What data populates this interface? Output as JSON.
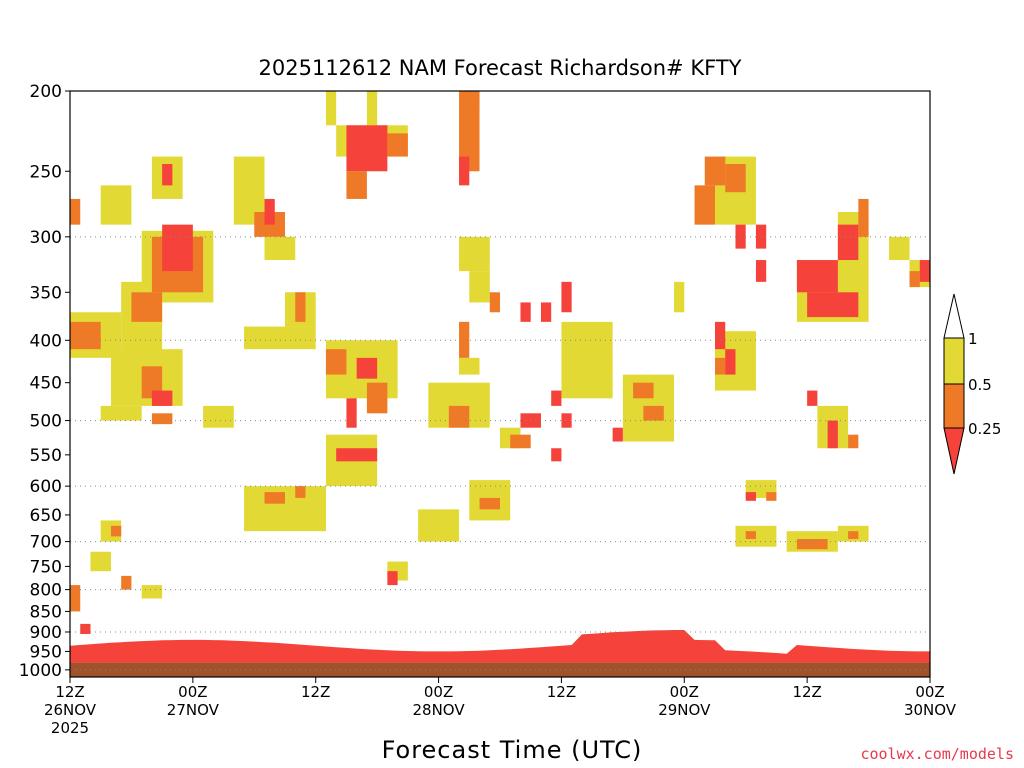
{
  "chart_data": {
    "type": "heatmap",
    "title": "2025112612 NAM Forecast Richardson# KFTY",
    "xlabel": "Forecast Time (UTC)",
    "ylabel": "",
    "y_scale": "log-pressure (inverted)",
    "ylim": [
      1000,
      200
    ],
    "yticks": [
      200,
      250,
      300,
      350,
      400,
      450,
      500,
      550,
      600,
      650,
      700,
      750,
      800,
      850,
      900,
      950,
      1000
    ],
    "xlim_hours": [
      0,
      84
    ],
    "xticks": [
      {
        "h": 0,
        "l1": "12Z",
        "l2": "26NOV",
        "l3": "2025"
      },
      {
        "h": 12,
        "l1": "00Z",
        "l2": "27NOV",
        "l3": ""
      },
      {
        "h": 24,
        "l1": "12Z",
        "l2": "",
        "l3": ""
      },
      {
        "h": 36,
        "l1": "00Z",
        "l2": "28NOV",
        "l3": ""
      },
      {
        "h": 48,
        "l1": "12Z",
        "l2": "",
        "l3": ""
      },
      {
        "h": 60,
        "l1": "00Z",
        "l2": "29NOV",
        "l3": ""
      },
      {
        "h": 72,
        "l1": "12Z",
        "l2": "",
        "l3": ""
      },
      {
        "h": 84,
        "l1": "00Z",
        "l2": "30NOV",
        "l3": ""
      }
    ],
    "grid_dotted_levels": [
      300,
      400,
      500,
      600,
      700,
      800,
      900,
      1000
    ],
    "legend": {
      "placement": "right",
      "labels": [
        "1",
        "0.5",
        "0.25"
      ],
      "bins": [
        {
          "range": [
            0.5,
            1
          ],
          "color": "#e3d934"
        },
        {
          "range": [
            0.25,
            0.5
          ],
          "color": "#ee7a28"
        },
        {
          "range": [
            0,
            0.25
          ],
          "color": "#f5423a"
        }
      ]
    },
    "colors": {
      "low": "#f5423a",
      "mid": "#ee7a28",
      "high": "#e3d934",
      "ground": "#a0522d"
    },
    "cell_hours": 1,
    "surface_pressure": 980,
    "cells": [
      {
        "h0": 9,
        "h1": 12,
        "p0": 290,
        "p1": 330,
        "c": "low"
      },
      {
        "h0": 8,
        "h1": 13,
        "p0": 300,
        "p1": 350,
        "c": "mid"
      },
      {
        "h0": 7,
        "h1": 14,
        "p0": 295,
        "p1": 360,
        "c": "high"
      },
      {
        "h0": 6,
        "h1": 9,
        "p0": 350,
        "p1": 380,
        "c": "mid"
      },
      {
        "h0": 5,
        "h1": 9,
        "p0": 340,
        "p1": 420,
        "c": "high"
      },
      {
        "h0": 0,
        "h1": 3,
        "p0": 380,
        "p1": 410,
        "c": "mid"
      },
      {
        "h0": 0,
        "h1": 5,
        "p0": 370,
        "p1": 420,
        "c": "high"
      },
      {
        "h0": 4,
        "h1": 11,
        "p0": 410,
        "p1": 480,
        "c": "high"
      },
      {
        "h0": 7,
        "h1": 9,
        "p0": 430,
        "p1": 470,
        "c": "mid"
      },
      {
        "h0": 8,
        "h1": 10,
        "p0": 460,
        "p1": 480,
        "c": "low"
      },
      {
        "h0": 3,
        "h1": 7,
        "p0": 480,
        "p1": 500,
        "c": "high"
      },
      {
        "h0": 8,
        "h1": 10,
        "p0": 490,
        "p1": 505,
        "c": "mid"
      },
      {
        "h0": 13,
        "h1": 16,
        "p0": 480,
        "p1": 510,
        "c": "high"
      },
      {
        "h0": 9,
        "h1": 10,
        "p0": 245,
        "p1": 260,
        "c": "low"
      },
      {
        "h0": 8,
        "h1": 11,
        "p0": 240,
        "p1": 270,
        "c": "high"
      },
      {
        "h0": 3,
        "h1": 6,
        "p0": 260,
        "p1": 290,
        "c": "high"
      },
      {
        "h0": 0,
        "h1": 1,
        "p0": 270,
        "p1": 290,
        "c": "mid"
      },
      {
        "h0": 16,
        "h1": 19,
        "p0": 240,
        "p1": 290,
        "c": "high"
      },
      {
        "h0": 19,
        "h1": 20,
        "p0": 270,
        "p1": 290,
        "c": "low"
      },
      {
        "h0": 18,
        "h1": 21,
        "p0": 280,
        "p1": 300,
        "c": "mid"
      },
      {
        "h0": 19,
        "h1": 22,
        "p0": 300,
        "p1": 320,
        "c": "high"
      },
      {
        "h0": 21,
        "h1": 24,
        "p0": 350,
        "p1": 385,
        "c": "high"
      },
      {
        "h0": 22,
        "h1": 23,
        "p0": 350,
        "p1": 380,
        "c": "mid"
      },
      {
        "h0": 17,
        "h1": 24,
        "p0": 385,
        "p1": 410,
        "c": "high"
      },
      {
        "h0": 26,
        "h1": 33,
        "p0": 220,
        "p1": 240,
        "c": "high"
      },
      {
        "h0": 27,
        "h1": 31,
        "p0": 220,
        "p1": 250,
        "c": "low"
      },
      {
        "h0": 31,
        "h1": 33,
        "p0": 225,
        "p1": 240,
        "c": "mid"
      },
      {
        "h0": 27,
        "h1": 29,
        "p0": 250,
        "p1": 270,
        "c": "mid"
      },
      {
        "h0": 25,
        "h1": 26,
        "p0": 200,
        "p1": 220,
        "c": "high"
      },
      {
        "h0": 29,
        "h1": 30,
        "p0": 200,
        "p1": 220,
        "c": "high"
      },
      {
        "h0": 25,
        "h1": 32,
        "p0": 400,
        "p1": 470,
        "c": "high"
      },
      {
        "h0": 25,
        "h1": 27,
        "p0": 410,
        "p1": 440,
        "c": "mid"
      },
      {
        "h0": 28,
        "h1": 30,
        "p0": 420,
        "p1": 445,
        "c": "low"
      },
      {
        "h0": 29,
        "h1": 31,
        "p0": 450,
        "p1": 490,
        "c": "mid"
      },
      {
        "h0": 27,
        "h1": 28,
        "p0": 470,
        "p1": 510,
        "c": "low"
      },
      {
        "h0": 26,
        "h1": 30,
        "p0": 540,
        "p1": 560,
        "c": "low"
      },
      {
        "h0": 25,
        "h1": 30,
        "p0": 520,
        "p1": 600,
        "c": "high"
      },
      {
        "h0": 38,
        "h1": 40,
        "p0": 200,
        "p1": 250,
        "c": "mid"
      },
      {
        "h0": 38,
        "h1": 39,
        "p0": 240,
        "p1": 260,
        "c": "low"
      },
      {
        "h0": 39,
        "h1": 40,
        "p0": 200,
        "p1": 210,
        "c": "mid"
      },
      {
        "h0": 38,
        "h1": 41,
        "p0": 300,
        "p1": 330,
        "c": "high"
      },
      {
        "h0": 39,
        "h1": 41,
        "p0": 330,
        "p1": 360,
        "c": "high"
      },
      {
        "h0": 41,
        "h1": 42,
        "p0": 350,
        "p1": 370,
        "c": "mid"
      },
      {
        "h0": 38,
        "h1": 39,
        "p0": 380,
        "p1": 420,
        "c": "mid"
      },
      {
        "h0": 38,
        "h1": 40,
        "p0": 420,
        "p1": 440,
        "c": "high"
      },
      {
        "h0": 35,
        "h1": 41,
        "p0": 450,
        "p1": 510,
        "c": "high"
      },
      {
        "h0": 37,
        "h1": 39,
        "p0": 480,
        "p1": 510,
        "c": "mid"
      },
      {
        "h0": 42,
        "h1": 44,
        "p0": 510,
        "p1": 540,
        "c": "high"
      },
      {
        "h0": 43,
        "h1": 45,
        "p0": 520,
        "p1": 540,
        "c": "mid"
      },
      {
        "h0": 44,
        "h1": 46,
        "p0": 490,
        "p1": 510,
        "c": "low"
      },
      {
        "h0": 39,
        "h1": 43,
        "p0": 590,
        "p1": 660,
        "c": "high"
      },
      {
        "h0": 40,
        "h1": 42,
        "p0": 620,
        "p1": 640,
        "c": "mid"
      },
      {
        "h0": 34,
        "h1": 38,
        "p0": 640,
        "p1": 700,
        "c": "high"
      },
      {
        "h0": 17,
        "h1": 25,
        "p0": 600,
        "p1": 680,
        "c": "high"
      },
      {
        "h0": 19,
        "h1": 21,
        "p0": 610,
        "p1": 630,
        "c": "mid"
      },
      {
        "h0": 22,
        "h1": 23,
        "p0": 600,
        "p1": 620,
        "c": "mid"
      },
      {
        "h0": 44,
        "h1": 45,
        "p0": 360,
        "p1": 380,
        "c": "low"
      },
      {
        "h0": 46,
        "h1": 47,
        "p0": 360,
        "p1": 380,
        "c": "low"
      },
      {
        "h0": 48,
        "h1": 49,
        "p0": 340,
        "p1": 370,
        "c": "low"
      },
      {
        "h0": 48,
        "h1": 53,
        "p0": 380,
        "p1": 470,
        "c": "high"
      },
      {
        "h0": 47,
        "h1": 48,
        "p0": 460,
        "p1": 480,
        "c": "low"
      },
      {
        "h0": 48,
        "h1": 49,
        "p0": 490,
        "p1": 510,
        "c": "low"
      },
      {
        "h0": 47,
        "h1": 48,
        "p0": 540,
        "p1": 560,
        "c": "low"
      },
      {
        "h0": 53,
        "h1": 54,
        "p0": 510,
        "p1": 530,
        "c": "low"
      },
      {
        "h0": 54,
        "h1": 59,
        "p0": 440,
        "p1": 530,
        "c": "high"
      },
      {
        "h0": 55,
        "h1": 57,
        "p0": 450,
        "p1": 470,
        "c": "mid"
      },
      {
        "h0": 56,
        "h1": 58,
        "p0": 480,
        "p1": 500,
        "c": "mid"
      },
      {
        "h0": 59,
        "h1": 60,
        "p0": 340,
        "p1": 370,
        "c": "high"
      },
      {
        "h0": 63,
        "h1": 67,
        "p0": 240,
        "p1": 290,
        "c": "high"
      },
      {
        "h0": 61,
        "h1": 63,
        "p0": 260,
        "p1": 290,
        "c": "mid"
      },
      {
        "h0": 62,
        "h1": 64,
        "p0": 240,
        "p1": 260,
        "c": "mid"
      },
      {
        "h0": 64,
        "h1": 66,
        "p0": 245,
        "p1": 265,
        "c": "mid"
      },
      {
        "h0": 65,
        "h1": 66,
        "p0": 290,
        "p1": 310,
        "c": "low"
      },
      {
        "h0": 67,
        "h1": 68,
        "p0": 290,
        "p1": 310,
        "c": "low"
      },
      {
        "h0": 67,
        "h1": 68,
        "p0": 320,
        "p1": 340,
        "c": "low"
      },
      {
        "h0": 63,
        "h1": 67,
        "p0": 390,
        "p1": 460,
        "c": "high"
      },
      {
        "h0": 63,
        "h1": 64,
        "p0": 380,
        "p1": 410,
        "c": "low"
      },
      {
        "h0": 64,
        "h1": 65,
        "p0": 410,
        "p1": 440,
        "c": "low"
      },
      {
        "h0": 63,
        "h1": 64,
        "p0": 420,
        "p1": 440,
        "c": "mid"
      },
      {
        "h0": 71,
        "h1": 78,
        "p0": 320,
        "p1": 380,
        "c": "high"
      },
      {
        "h0": 71,
        "h1": 75,
        "p0": 320,
        "p1": 350,
        "c": "low"
      },
      {
        "h0": 72,
        "h1": 77,
        "p0": 350,
        "p1": 375,
        "c": "low"
      },
      {
        "h0": 75,
        "h1": 78,
        "p0": 280,
        "p1": 320,
        "c": "high"
      },
      {
        "h0": 75,
        "h1": 77,
        "p0": 290,
        "p1": 320,
        "c": "low"
      },
      {
        "h0": 77,
        "h1": 78,
        "p0": 270,
        "p1": 300,
        "c": "mid"
      },
      {
        "h0": 80,
        "h1": 82,
        "p0": 300,
        "p1": 320,
        "c": "high"
      },
      {
        "h0": 82,
        "h1": 84,
        "p0": 320,
        "p1": 345,
        "c": "high"
      },
      {
        "h0": 82,
        "h1": 83,
        "p0": 330,
        "p1": 345,
        "c": "mid"
      },
      {
        "h0": 83,
        "h1": 84,
        "p0": 320,
        "p1": 340,
        "c": "low"
      },
      {
        "h0": 72,
        "h1": 73,
        "p0": 460,
        "p1": 480,
        "c": "low"
      },
      {
        "h0": 73,
        "h1": 76,
        "p0": 480,
        "p1": 540,
        "c": "high"
      },
      {
        "h0": 74,
        "h1": 75,
        "p0": 500,
        "p1": 540,
        "c": "low"
      },
      {
        "h0": 76,
        "h1": 77,
        "p0": 520,
        "p1": 540,
        "c": "mid"
      },
      {
        "h0": 66,
        "h1": 69,
        "p0": 590,
        "p1": 620,
        "c": "high"
      },
      {
        "h0": 66,
        "h1": 67,
        "p0": 610,
        "p1": 625,
        "c": "low"
      },
      {
        "h0": 68,
        "h1": 69,
        "p0": 610,
        "p1": 625,
        "c": "mid"
      },
      {
        "h0": 70,
        "h1": 75,
        "p0": 680,
        "p1": 720,
        "c": "high"
      },
      {
        "h0": 71,
        "h1": 74,
        "p0": 695,
        "p1": 715,
        "c": "mid"
      },
      {
        "h0": 65,
        "h1": 69,
        "p0": 670,
        "p1": 710,
        "c": "high"
      },
      {
        "h0": 66,
        "h1": 67,
        "p0": 680,
        "p1": 695,
        "c": "mid"
      },
      {
        "h0": 75,
        "h1": 78,
        "p0": 670,
        "p1": 700,
        "c": "high"
      },
      {
        "h0": 76,
        "h1": 77,
        "p0": 680,
        "p1": 695,
        "c": "mid"
      },
      {
        "h0": 3,
        "h1": 5,
        "p0": 660,
        "p1": 700,
        "c": "high"
      },
      {
        "h0": 4,
        "h1": 5,
        "p0": 670,
        "p1": 690,
        "c": "mid"
      },
      {
        "h0": 2,
        "h1": 4,
        "p0": 720,
        "p1": 760,
        "c": "high"
      },
      {
        "h0": 5,
        "h1": 6,
        "p0": 770,
        "p1": 800,
        "c": "mid"
      },
      {
        "h0": 7,
        "h1": 9,
        "p0": 790,
        "p1": 820,
        "c": "high"
      },
      {
        "h0": 31,
        "h1": 33,
        "p0": 740,
        "p1": 780,
        "c": "high"
      },
      {
        "h0": 31,
        "h1": 32,
        "p0": 760,
        "p1": 790,
        "c": "low"
      },
      {
        "h0": 0,
        "h1": 1,
        "p0": 790,
        "p1": 850,
        "c": "mid"
      },
      {
        "h0": 1,
        "h1": 2,
        "p0": 880,
        "p1": 905,
        "c": "low"
      }
    ]
  },
  "credit": "coolwx.com/models"
}
